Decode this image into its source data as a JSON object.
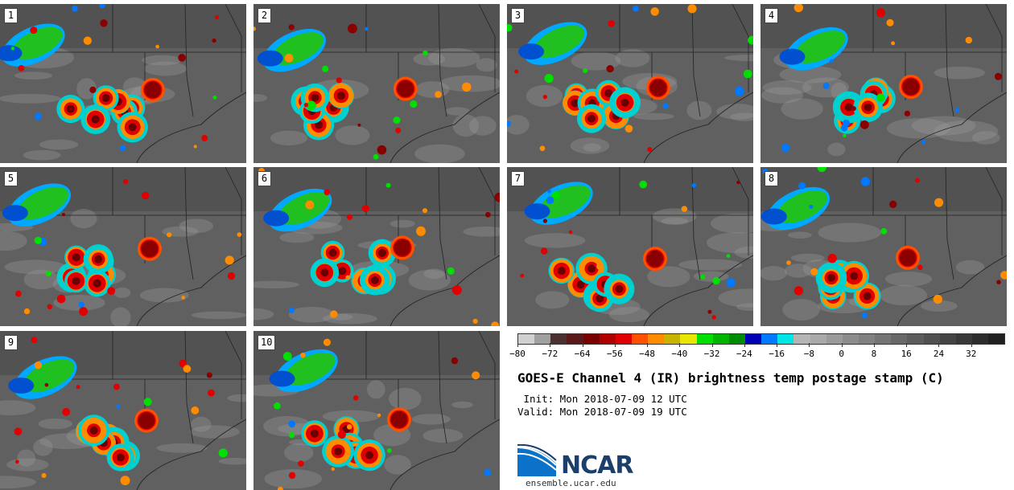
{
  "panels": [
    {
      "label": "1"
    },
    {
      "label": "2"
    },
    {
      "label": "3"
    },
    {
      "label": "4"
    },
    {
      "label": "5"
    },
    {
      "label": "6"
    },
    {
      "label": "7"
    },
    {
      "label": "8"
    },
    {
      "label": "9"
    },
    {
      "label": "10"
    }
  ],
  "colorbar": {
    "colors": [
      "#d0d0d0",
      "#a0a0a0",
      "#4a3030",
      "#5a1818",
      "#7a0000",
      "#b00000",
      "#e00000",
      "#ff5000",
      "#ff8c00",
      "#c8b400",
      "#e6e600",
      "#00e000",
      "#00b400",
      "#008c00",
      "#0000b4",
      "#0078ff",
      "#00e6e6",
      "#b4b4b4",
      "#a8a8a8",
      "#9a9a9a",
      "#8c8c8c",
      "#808080",
      "#747474",
      "#686868",
      "#5c5c5c",
      "#505050",
      "#444444",
      "#383838",
      "#2c2c2c",
      "#202020"
    ],
    "min": -80,
    "max": 40,
    "tick_labels": [
      "−80",
      "−72",
      "−64",
      "−56",
      "−48",
      "−40",
      "−32",
      "−24",
      "−16",
      "−8",
      "0",
      "8",
      "16",
      "24",
      "32"
    ],
    "tick_values": [
      -80,
      -72,
      -64,
      -56,
      -48,
      -40,
      -32,
      -24,
      -16,
      -8,
      0,
      8,
      16,
      24,
      32
    ]
  },
  "title": "GOES-E Channel 4 (IR) brightness temp postage stamp (C)",
  "init_line": " Init: Mon 2018-07-09 12 UTC",
  "valid_line": "Valid: Mon 2018-07-09 19 UTC",
  "logo_text": "NCAR",
  "site": "ensemble.ucar.edu"
}
